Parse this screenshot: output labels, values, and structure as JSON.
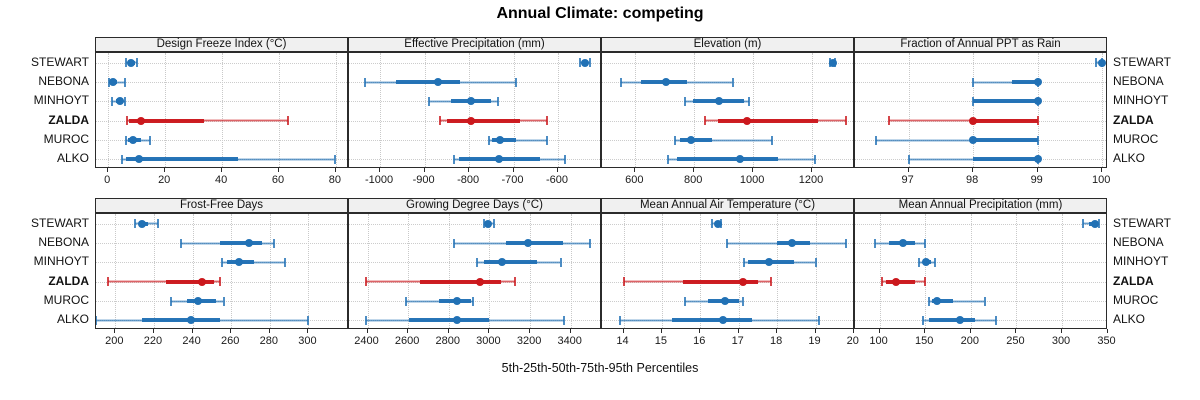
{
  "title": "Annual Climate: competing",
  "chart_data": {
    "type": "scatter",
    "subtype": "trellis percentile-interval plot (median dot, 25-75 thick bar, 5-95 whisker band)",
    "title": "Annual Climate: competing",
    "xlabel": "5th-25th-50th-75th-95th Percentiles",
    "legend_position": "none",
    "grid": "dotted",
    "percentiles_shown": [
      5,
      25,
      50,
      75,
      95
    ],
    "sites": [
      "STEWART",
      "NEBONA",
      "MINHOYT",
      "ZALDA",
      "MUROC",
      "ALKO"
    ],
    "highlighted_site": "ZALDA",
    "colors": {
      "series": "#2171B5",
      "highlight": "#CB181D",
      "strip_bg": "#F0F0F0",
      "panel_border": "#2B2B2B",
      "grid": "#C9C9C9",
      "text": "#111111"
    },
    "panels": [
      {
        "title": "Design Freeze Index (°C)",
        "row": 0,
        "col": 0,
        "axis": {
          "min": -4.3,
          "max": 84.6,
          "ticks": [
            0,
            20,
            40,
            60,
            80
          ]
        },
        "data": [
          {
            "site": "STEWART",
            "q": [
              6.2,
              7.0,
              8.0,
              9.5,
              10.0
            ]
          },
          {
            "site": "NEBONA",
            "q": [
              0.3,
              0.8,
              1.5,
              3.0,
              5.8
            ]
          },
          {
            "site": "MINHOYT",
            "q": [
              1.2,
              2.7,
              4.1,
              5.1,
              5.9
            ]
          },
          {
            "site": "ZALDA",
            "q": [
              6.6,
              7.3,
              11.5,
              33.5,
              63.0
            ]
          },
          {
            "site": "MUROC",
            "q": [
              6.2,
              6.8,
              8.8,
              11.5,
              14.8
            ]
          },
          {
            "site": "ALKO",
            "q": [
              4.7,
              6.2,
              10.7,
              45.5,
              79.5
            ]
          }
        ]
      },
      {
        "title": "Effective Precipitation (mm)",
        "row": 0,
        "col": 1,
        "axis": {
          "min": -1070,
          "max": -501,
          "ticks": [
            -1000,
            -900,
            -800,
            -700,
            -600
          ]
        },
        "data": [
          {
            "site": "STEWART",
            "q": [
              -550,
              -545,
              -540,
              -533,
              -528
            ]
          },
          {
            "site": "NEBONA",
            "q": [
              -1035,
              -965,
              -870,
              -820,
              -695
            ]
          },
          {
            "site": "MINHOYT",
            "q": [
              -890,
              -840,
              -795,
              -750,
              -735
            ]
          },
          {
            "site": "ZALDA",
            "q": [
              -865,
              -850,
              -795,
              -685,
              -625
            ]
          },
          {
            "site": "MUROC",
            "q": [
              -755,
              -748,
              -730,
              -695,
              -625
            ]
          },
          {
            "site": "ALKO",
            "q": [
              -835,
              -823,
              -733,
              -640,
              -585
            ]
          }
        ]
      },
      {
        "title": "Elevation (m)",
        "row": 0,
        "col": 2,
        "axis": {
          "min": 487,
          "max": 1346,
          "ticks": [
            600,
            800,
            1000,
            1200
          ]
        },
        "data": [
          {
            "site": "STEWART",
            "q": [
              1262,
              1268,
              1271,
              1275,
              1278
            ]
          },
          {
            "site": "NEBONA",
            "q": [
              550,
              620,
              705,
              775,
              930
            ]
          },
          {
            "site": "MINHOYT",
            "q": [
              770,
              795,
              885,
              970,
              985
            ]
          },
          {
            "site": "ZALDA",
            "q": [
              835,
              880,
              980,
              1220,
              1315
            ]
          },
          {
            "site": "MUROC",
            "q": [
              735,
              750,
              790,
              860,
              1065
            ]
          },
          {
            "site": "ALKO",
            "q": [
              710,
              740,
              955,
              1085,
              1210
            ]
          }
        ]
      },
      {
        "title": "Fraction of Annual PPT as Rain",
        "row": 0,
        "col": 3,
        "axis": {
          "min": 96.17,
          "max": 100.09,
          "ticks": [
            97,
            98,
            99,
            100
          ]
        },
        "data": [
          {
            "site": "STEWART",
            "q": [
              99.9,
              99.95,
              100.0,
              100.0,
              100.0
            ]
          },
          {
            "site": "NEBONA",
            "q": [
              98.0,
              98.6,
              99.0,
              99.0,
              99.0
            ]
          },
          {
            "site": "MINHOYT",
            "q": [
              98.0,
              98.0,
              99.0,
              99.0,
              99.0
            ]
          },
          {
            "site": "ZALDA",
            "q": [
              96.7,
              98.0,
              98.0,
              99.0,
              99.0
            ]
          },
          {
            "site": "MUROC",
            "q": [
              96.5,
              98.0,
              98.0,
              99.0,
              99.0
            ]
          },
          {
            "site": "ALKO",
            "q": [
              97.0,
              98.0,
              99.0,
              99.0,
              99.0
            ]
          }
        ]
      },
      {
        "title": "Frost-Free Days",
        "row": 1,
        "col": 0,
        "axis": {
          "min": 190,
          "max": 321,
          "ticks": [
            200,
            220,
            240,
            260,
            280,
            300
          ]
        },
        "data": [
          {
            "site": "STEWART",
            "q": [
              210,
              212,
              214,
              217,
              222
            ]
          },
          {
            "site": "NEBONA",
            "q": [
              234,
              254,
              269,
              276,
              282
            ]
          },
          {
            "site": "MINHOYT",
            "q": [
              255,
              258,
              264,
              272,
              288
            ]
          },
          {
            "site": "ZALDA",
            "q": [
              196,
              226,
              245,
              251,
              254
            ]
          },
          {
            "site": "MUROC",
            "q": [
              229,
              237,
              243,
              252,
              256
            ]
          },
          {
            "site": "ALKO",
            "q": [
              190,
              214,
              239,
              254,
              300
            ]
          }
        ]
      },
      {
        "title": "Growing Degree Days (°C)",
        "row": 1,
        "col": 1,
        "axis": {
          "min": 2309,
          "max": 3554,
          "ticks": [
            2400,
            2600,
            2800,
            3000,
            3200,
            3400
          ]
        },
        "data": [
          {
            "site": "STEWART",
            "q": [
              2975,
              2985,
              2995,
              3010,
              3022
            ]
          },
          {
            "site": "NEBONA",
            "q": [
              2825,
              3080,
              3190,
              3360,
              3495
            ]
          },
          {
            "site": "MINHOYT",
            "q": [
              2940,
              2975,
              3060,
              3235,
              3350
            ]
          },
          {
            "site": "ZALDA",
            "q": [
              2390,
              2660,
              2955,
              3055,
              3125
            ]
          },
          {
            "site": "MUROC",
            "q": [
              2590,
              2750,
              2840,
              2910,
              2920
            ]
          },
          {
            "site": "ALKO",
            "q": [
              2390,
              2605,
              2840,
              3000,
              3365
            ]
          }
        ]
      },
      {
        "title": "Mean Annual Air Temperature (°C)",
        "row": 1,
        "col": 2,
        "axis": {
          "min": 13.44,
          "max": 20.03,
          "ticks": [
            14,
            15,
            16,
            17,
            18,
            19,
            20
          ]
        },
        "data": [
          {
            "site": "STEWART",
            "q": [
              16.3,
              16.4,
              16.45,
              16.5,
              16.55
            ]
          },
          {
            "site": "NEBONA",
            "q": [
              16.7,
              18.0,
              18.4,
              18.85,
              19.8
            ]
          },
          {
            "site": "MINHOYT",
            "q": [
              17.15,
              17.25,
              17.8,
              18.45,
              19.0
            ]
          },
          {
            "site": "ZALDA",
            "q": [
              14.0,
              15.55,
              17.1,
              17.5,
              17.85
            ]
          },
          {
            "site": "MUROC",
            "q": [
              15.6,
              16.2,
              16.65,
              17.0,
              17.1
            ]
          },
          {
            "site": "ALKO",
            "q": [
              13.9,
              15.25,
              16.6,
              17.35,
              19.1
            ]
          }
        ]
      },
      {
        "title": "Mean Annual Precipitation (mm)",
        "row": 1,
        "col": 3,
        "axis": {
          "min": 73,
          "max": 350.5,
          "ticks": [
            100,
            150,
            200,
            250,
            300,
            350
          ]
        },
        "data": [
          {
            "site": "STEWART",
            "q": [
              323,
              330,
              336,
              340,
              341
            ]
          },
          {
            "site": "NEBONA",
            "q": [
              95,
              110,
              126,
              139,
              150
            ]
          },
          {
            "site": "MINHOYT",
            "q": [
              143,
              147,
              151,
              156,
              161
            ]
          },
          {
            "site": "ZALDA",
            "q": [
              103,
              107,
              118,
              139,
              150
            ]
          },
          {
            "site": "MUROC",
            "q": [
              154,
              157,
              163,
              181,
              215
            ]
          },
          {
            "site": "ALKO",
            "q": [
              148,
              154,
              188,
              205,
              228
            ]
          }
        ]
      }
    ]
  }
}
